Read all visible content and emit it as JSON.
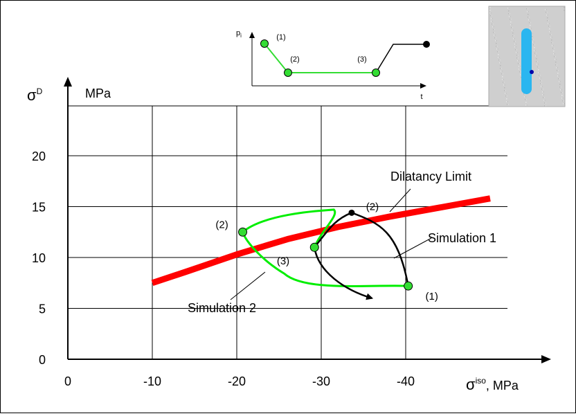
{
  "chart_data": {
    "type": "line",
    "y_unit": "MPa",
    "xlabel_symbol": "σ",
    "xlabel_sup": "iso",
    "xlabel_unit": ", MPa",
    "ylabel_symbol": "σ",
    "ylabel_sup": "D",
    "x_reversed": true,
    "xlim": [
      0,
      -50
    ],
    "ylim": [
      0,
      25
    ],
    "x_ticks": [
      0,
      -10,
      -20,
      -30,
      -40
    ],
    "x_tick_labels": [
      "0",
      "-10",
      "-20",
      "-30",
      "-40"
    ],
    "y_ticks": [
      0,
      5,
      10,
      15,
      20
    ],
    "y_tick_labels": [
      "0",
      "5",
      "10",
      "15",
      "20"
    ],
    "grid": true,
    "series": [
      {
        "name": "Dilatancy Limit",
        "color": "#ff0000",
        "points": [
          [
            -10,
            7.5
          ],
          [
            -14,
            8.6
          ],
          [
            -20,
            10.3
          ],
          [
            -26,
            11.8
          ],
          [
            -32,
            13.0
          ],
          [
            -38,
            14.0
          ],
          [
            -44,
            14.9
          ],
          [
            -50,
            15.8
          ]
        ]
      },
      {
        "name": "Simulation 1",
        "color": "#000000",
        "start": [
          -29.2,
          11.0
        ],
        "peak": [
          -33.6,
          14.4
        ],
        "end": [
          -40.3,
          7.2
        ],
        "arrow_to": [
          -36.0,
          6.0
        ]
      },
      {
        "name": "Simulation 2",
        "color": "#00ee00",
        "point_1": [
          -40.3,
          7.2
        ],
        "point_2": [
          -20.7,
          12.5
        ],
        "loop_top": [
          -31.5,
          14.7
        ],
        "point_3": [
          -29.2,
          11.0
        ]
      }
    ],
    "annotations": {
      "sim1_peak_label": "(2)",
      "sim2_p1_label": "(1)",
      "sim2_p2_label": "(2)",
      "sim2_p3_label": "(3)"
    },
    "inset": {
      "y_label_main": "p",
      "y_label_sub": "i",
      "x_label": "t",
      "labels": [
        "(1)",
        "(2)",
        "(3)"
      ]
    }
  }
}
